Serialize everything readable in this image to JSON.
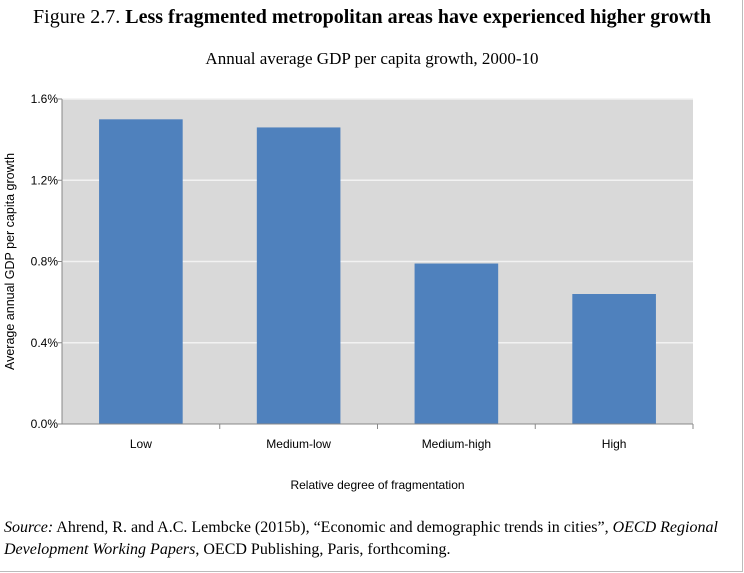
{
  "figure": {
    "number": "Figure 2.7.",
    "title": "Less fragmented metropolitan areas have experienced higher growth",
    "subtitle": "Annual average GDP per capita growth, 2000-10"
  },
  "chart_data": {
    "type": "bar",
    "title": "Annual average GDP per capita growth, 2000-10",
    "categories": [
      "Low",
      "Medium-low",
      "Medium-high",
      "High"
    ],
    "values": [
      1.5,
      1.46,
      0.79,
      0.64
    ],
    "unit": "%",
    "xlabel": "Relative degree of fragmentation",
    "ylabel": "Average annual GDP per capita growth",
    "ylim": [
      0,
      1.6
    ],
    "yticks": [
      "0.0%",
      "0.4%",
      "0.8%",
      "1.2%",
      "1.6%"
    ],
    "ytick_values": [
      0,
      0.4,
      0.8,
      1.2,
      1.6
    ],
    "grid": true,
    "bar_color": "#4f81bd",
    "plot_background": "#d9d9d9"
  },
  "source": {
    "label": "Source:",
    "text1": " Ahrend, R. and A.C. Lembcke (2015b), “Economic and demographic trends in cities”, ",
    "italic1": "OECD Regional Development Working Papers",
    "text2": ", OECD Publishing, Paris, forthcoming."
  }
}
